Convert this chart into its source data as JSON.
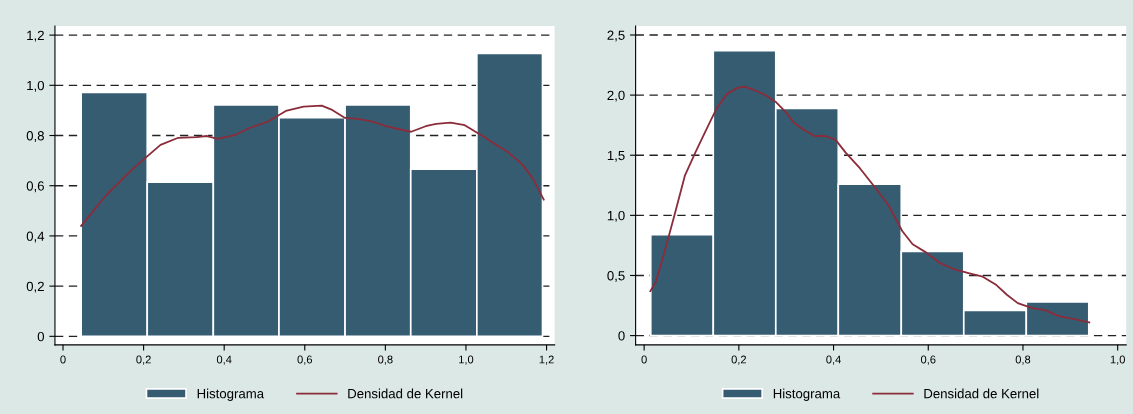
{
  "chart_data": [
    {
      "type": "histogram",
      "xlim": [
        -0.02,
        1.22
      ],
      "ylim": [
        -0.034,
        1.236
      ],
      "xticks": [
        0,
        {
          "value": 0.2,
          "label": "0,2"
        },
        {
          "value": 0.4,
          "label": "0,4"
        },
        {
          "value": 0.6,
          "label": "0,6"
        },
        {
          "value": 0.8,
          "label": "0,8"
        },
        {
          "value": 1.0,
          "label": "1,0"
        },
        {
          "value": 1.2,
          "label": "1,2"
        }
      ],
      "yticks": [
        0,
        {
          "value": 0.2,
          "label": "0,2"
        },
        {
          "value": 0.4,
          "label": "0,4"
        },
        {
          "value": 0.6,
          "label": "0,6"
        },
        {
          "value": 0.8,
          "label": "0,8"
        },
        {
          "value": 1.0,
          "label": "1,0"
        },
        {
          "value": 1.2,
          "label": "1,2"
        }
      ],
      "grid": "y",
      "legend": "bottom",
      "series": [
        {
          "name": "Histograma",
          "color": "#365c72",
          "bins": [
            0.045,
            0.209,
            0.373,
            0.536,
            0.7,
            0.863,
            1.027,
            1.19
          ],
          "values": [
            0.972,
            0.614,
            0.922,
            0.871,
            0.922,
            0.666,
            1.127
          ]
        },
        {
          "name": "Densidad de Kernel",
          "type": "line",
          "color": "#8b2c3a",
          "x": [
            0.045,
            0.108,
            0.171,
            0.206,
            0.242,
            0.286,
            0.331,
            0.357,
            0.384,
            0.428,
            0.464,
            0.508,
            0.553,
            0.597,
            0.642,
            0.668,
            0.7,
            0.731,
            0.766,
            0.802,
            0.837,
            0.864,
            0.9,
            0.926,
            0.962,
            0.997,
            1.033,
            1.068,
            1.104,
            1.14,
            1.166,
            1.193
          ],
          "values": [
            0.44,
            0.564,
            0.664,
            0.713,
            0.763,
            0.791,
            0.794,
            0.798,
            0.787,
            0.803,
            0.831,
            0.855,
            0.898,
            0.915,
            0.919,
            0.902,
            0.87,
            0.866,
            0.856,
            0.837,
            0.824,
            0.815,
            0.837,
            0.846,
            0.851,
            0.841,
            0.806,
            0.77,
            0.734,
            0.685,
            0.628,
            0.545
          ]
        }
      ]
    },
    {
      "type": "histogram",
      "xlim": [
        -0.018,
        1.018
      ],
      "ylim": [
        -0.077,
        2.574
      ],
      "xticks": [
        0,
        {
          "value": 0.2,
          "label": "0,2"
        },
        {
          "value": 0.4,
          "label": "0,4"
        },
        {
          "value": 0.6,
          "label": "0,6"
        },
        {
          "value": 0.8,
          "label": "0,8"
        },
        {
          "value": 1.0,
          "label": "1,0"
        }
      ],
      "yticks": [
        0,
        {
          "value": 0.5,
          "label": "0,5"
        },
        {
          "value": 1.0,
          "label": "1,0"
        },
        {
          "value": 1.5,
          "label": "1,5"
        },
        {
          "value": 2.0,
          "label": "2,0"
        },
        {
          "value": 2.5,
          "label": "2,5"
        }
      ],
      "grid": "y",
      "legend": "bottom",
      "series": [
        {
          "name": "Histograma",
          "color": "#365c72",
          "bins": [
            0.014,
            0.146,
            0.278,
            0.41,
            0.543,
            0.675,
            0.807,
            0.939
          ],
          "values": [
            0.84,
            2.37,
            1.89,
            1.26,
            0.7,
            0.21,
            0.28
          ]
        },
        {
          "name": "Densidad de Kernel",
          "type": "line",
          "color": "#8b2c3a",
          "x": [
            0.013,
            0.024,
            0.042,
            0.064,
            0.086,
            0.109,
            0.131,
            0.153,
            0.175,
            0.197,
            0.212,
            0.234,
            0.256,
            0.279,
            0.301,
            0.316,
            0.338,
            0.36,
            0.382,
            0.404,
            0.426,
            0.456,
            0.486,
            0.515,
            0.545,
            0.567,
            0.596,
            0.626,
            0.656,
            0.685,
            0.715,
            0.744,
            0.766,
            0.789,
            0.818,
            0.848,
            0.877,
            0.907,
            0.94
          ],
          "values": [
            0.37,
            0.44,
            0.68,
            1.0,
            1.33,
            1.53,
            1.71,
            1.89,
            2.01,
            2.06,
            2.07,
            2.04,
            2.0,
            1.94,
            1.85,
            1.77,
            1.71,
            1.66,
            1.66,
            1.63,
            1.52,
            1.39,
            1.24,
            1.09,
            0.87,
            0.76,
            0.69,
            0.6,
            0.55,
            0.52,
            0.49,
            0.42,
            0.34,
            0.27,
            0.23,
            0.21,
            0.16,
            0.14,
            0.11
          ]
        }
      ]
    }
  ]
}
